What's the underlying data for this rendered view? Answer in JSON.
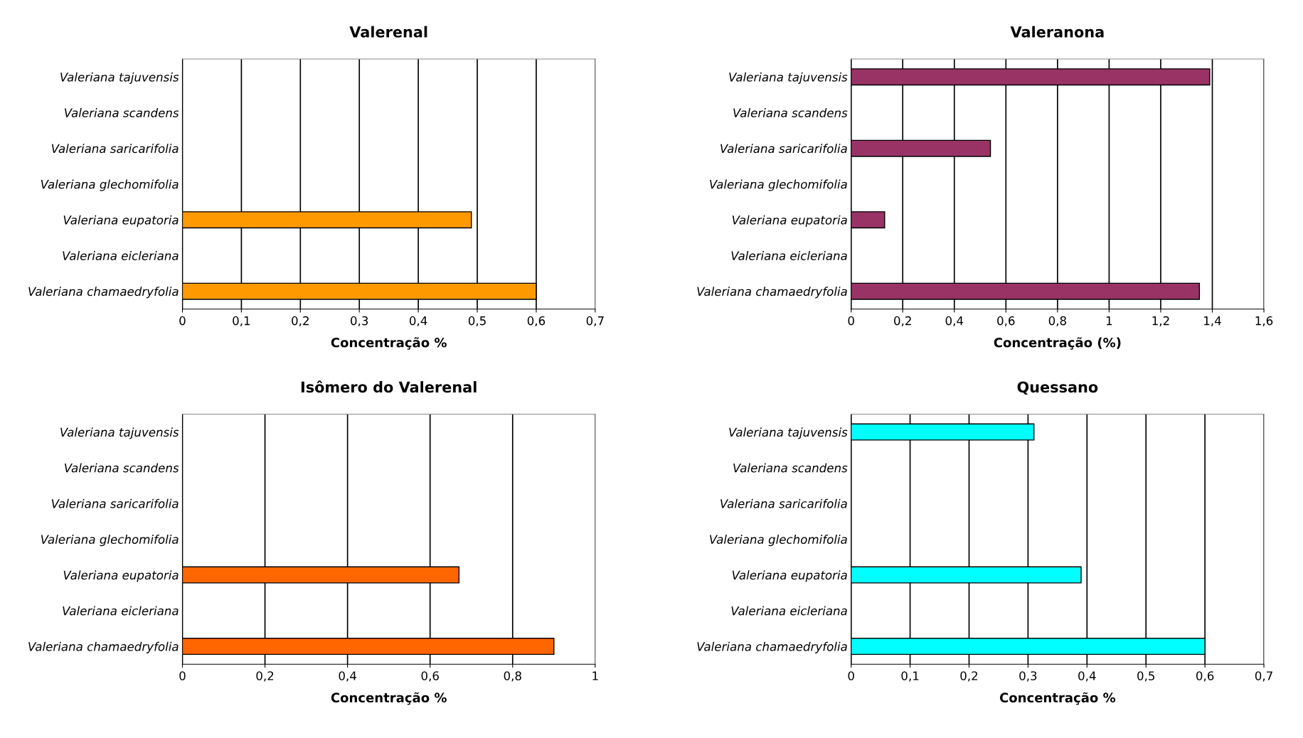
{
  "chart_data": [
    {
      "type": "bar",
      "orientation": "horizontal",
      "title": "Valerenal",
      "xlabel": "Concentração %",
      "categories": [
        "Valeriana tajuvensis",
        "Valeriana scandens",
        "Valeriana saricarifolia",
        "Valeriana glechomifolia",
        "Valeriana eupatoria",
        "Valeriana eicleriana",
        "Valeriana chamaedryfolia"
      ],
      "series": [
        {
          "color": "#ff9900",
          "values": [
            null,
            null,
            null,
            null,
            0.49,
            null,
            0.6
          ]
        }
      ],
      "xlim": [
        0,
        0.7
      ],
      "xticks": [
        0,
        {
          "value": 0.1,
          "label": "0,1"
        },
        {
          "value": 0.2,
          "label": "0,2"
        },
        {
          "value": 0.3,
          "label": "0,3"
        },
        {
          "value": 0.4,
          "label": "0,4"
        },
        {
          "value": 0.5,
          "label": "0,5"
        },
        {
          "value": 0.6,
          "label": "0,6"
        },
        {
          "value": 0.7,
          "label": "0,7"
        }
      ],
      "grid": "x",
      "legend": false
    },
    {
      "type": "bar",
      "orientation": "horizontal",
      "title": "Valeranona",
      "xlabel": "Concentração (%)",
      "categories": [
        "Valeriana tajuvensis",
        "Valeriana scandens",
        "Valeriana saricarifolia",
        "Valeriana glechomifolia",
        "Valeriana eupatoria",
        "Valeriana eicleriana",
        "Valeriana chamaedryfolia"
      ],
      "series": [
        {
          "color": "#993366",
          "values": [
            1.39,
            null,
            0.54,
            null,
            0.13,
            null,
            1.35
          ]
        }
      ],
      "xlim": [
        0,
        1.6
      ],
      "xticks": [
        0,
        {
          "value": 0.2,
          "label": "0,2"
        },
        {
          "value": 0.4,
          "label": "0,4"
        },
        {
          "value": 0.6,
          "label": "0,6"
        },
        {
          "value": 0.8,
          "label": "0,8"
        },
        1,
        {
          "value": 1.2,
          "label": "1,2"
        },
        {
          "value": 1.4,
          "label": "1,4"
        },
        {
          "value": 1.6,
          "label": "1,6"
        }
      ],
      "grid": "x",
      "legend": false
    },
    {
      "type": "bar",
      "orientation": "horizontal",
      "title": "Isômero do Valerenal",
      "xlabel": "Concentração %",
      "categories": [
        "Valeriana tajuvensis",
        "Valeriana scandens",
        "Valeriana saricarifolia",
        "Valeriana glechomifolia",
        "Valeriana eupatoria",
        "Valeriana eicleriana",
        "Valeriana chamaedryfolia"
      ],
      "series": [
        {
          "color": "#ff6600",
          "values": [
            null,
            null,
            null,
            null,
            0.67,
            null,
            0.9
          ]
        }
      ],
      "xlim": [
        0,
        1
      ],
      "xticks": [
        0,
        {
          "value": 0.2,
          "label": "0,2"
        },
        {
          "value": 0.4,
          "label": "0,4"
        },
        {
          "value": 0.6,
          "label": "0,6"
        },
        {
          "value": 0.8,
          "label": "0,8"
        },
        1
      ],
      "grid": "x",
      "legend": false
    },
    {
      "type": "bar",
      "orientation": "horizontal",
      "title": "Quessano",
      "xlabel": "Concentração %",
      "categories": [
        "Valeriana tajuvensis",
        "Valeriana scandens",
        "Valeriana saricarifolia",
        "Valeriana glechomifolia",
        "Valeriana eupatoria",
        "Valeriana eicleriana",
        "Valeriana chamaedryfolia"
      ],
      "series": [
        {
          "color": "#00ffff",
          "values": [
            0.31,
            null,
            null,
            null,
            0.39,
            null,
            0.6
          ]
        }
      ],
      "xlim": [
        0,
        0.7
      ],
      "xticks": [
        0,
        {
          "value": 0.1,
          "label": "0,1"
        },
        {
          "value": 0.2,
          "label": "0,2"
        },
        {
          "value": 0.3,
          "label": "0,3"
        },
        {
          "value": 0.4,
          "label": "0,4"
        },
        {
          "value": 0.5,
          "label": "0,5"
        },
        {
          "value": 0.6,
          "label": "0,6"
        },
        {
          "value": 0.7,
          "label": "0,7"
        }
      ],
      "grid": "x",
      "legend": false
    }
  ]
}
